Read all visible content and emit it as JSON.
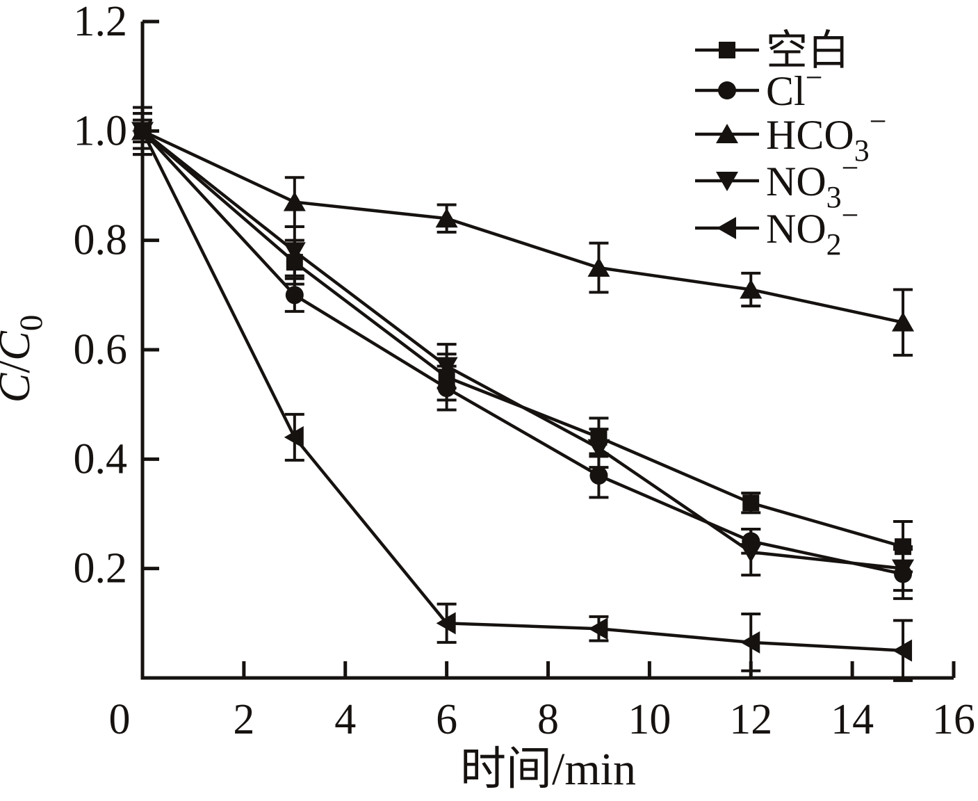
{
  "colors": {
    "ink": "#161210",
    "background": "#ffffff"
  },
  "axes": {
    "x": {
      "label": "时间/min",
      "origin_label": "0",
      "ticks": [
        2,
        4,
        6,
        8,
        10,
        12,
        14,
        16
      ],
      "range": [
        0,
        16
      ]
    },
    "y": {
      "label_parts": [
        {
          "t": "C",
          "p": "it"
        },
        {
          "t": "/",
          "p": "n"
        },
        {
          "t": "C",
          "p": "it"
        },
        {
          "t": "0",
          "p": "sub"
        }
      ],
      "ticks": [
        {
          "value": 1.2,
          "label": "1.2"
        },
        {
          "value": 1.0,
          "label": "1.0"
        },
        {
          "value": 0.8,
          "label": "0.8"
        },
        {
          "value": 0.6,
          "label": "0.6"
        },
        {
          "value": 0.4,
          "label": "0.4"
        },
        {
          "value": 0.2,
          "label": "0.2"
        }
      ],
      "range": [
        0,
        1.2
      ]
    }
  },
  "legend": {
    "position": "top-right",
    "entries": [
      {
        "id": "kongbai",
        "marker": "square",
        "parts": [
          {
            "t": "空白",
            "p": "n"
          }
        ]
      },
      {
        "id": "cl",
        "marker": "circle",
        "parts": [
          {
            "t": "Cl",
            "p": "n"
          },
          {
            "t": "−",
            "p": "sup"
          }
        ]
      },
      {
        "id": "hco3",
        "marker": "triangle-up",
        "parts": [
          {
            "t": "HCO",
            "p": "n"
          },
          {
            "t": "3",
            "p": "sub"
          },
          {
            "t": "−",
            "p": "sup"
          }
        ]
      },
      {
        "id": "no3",
        "marker": "triangle-down",
        "parts": [
          {
            "t": "NO",
            "p": "n"
          },
          {
            "t": "3",
            "p": "sub"
          },
          {
            "t": "−",
            "p": "sup"
          }
        ]
      },
      {
        "id": "no2",
        "marker": "triangle-left",
        "parts": [
          {
            "t": "NO",
            "p": "n"
          },
          {
            "t": "2",
            "p": "sub"
          },
          {
            "t": "−",
            "p": "sup"
          }
        ]
      }
    ]
  },
  "chart_data": {
    "type": "line",
    "title": "",
    "xlabel": "时间/min",
    "ylabel": "C/C0",
    "x": [
      0,
      3,
      6,
      9,
      12,
      15
    ],
    "xlim": [
      0,
      16
    ],
    "ylim": [
      0,
      1.2
    ],
    "grid": false,
    "legend_position": "top-right",
    "error_bars": true,
    "series": [
      {
        "id": "kongbai",
        "name": "空白",
        "marker": "square",
        "values": [
          1.0,
          0.76,
          0.55,
          0.44,
          0.32,
          0.24
        ],
        "errors": [
          0.043,
          0.04,
          0.042,
          0.035,
          0.018,
          0.046
        ]
      },
      {
        "id": "cl",
        "name": "Cl−",
        "marker": "circle",
        "values": [
          1.0,
          0.7,
          0.53,
          0.37,
          0.25,
          0.19
        ],
        "errors": [
          0.032,
          0.03,
          0.04,
          0.04,
          0.022,
          0.045
        ]
      },
      {
        "id": "hco3",
        "name": "HCO3−",
        "marker": "triangle-up",
        "values": [
          1.0,
          0.87,
          0.84,
          0.75,
          0.71,
          0.65
        ],
        "errors": [
          0.043,
          0.045,
          0.025,
          0.045,
          0.03,
          0.06
        ]
      },
      {
        "id": "no3",
        "name": "NO3−",
        "marker": "triangle-down",
        "values": [
          1.0,
          0.78,
          0.57,
          0.42,
          0.23,
          0.2
        ],
        "errors": [
          0.032,
          0.045,
          0.04,
          0.035,
          0.042,
          0.04
        ]
      },
      {
        "id": "no2",
        "name": "NO2−",
        "marker": "triangle-left",
        "values": [
          1.0,
          0.44,
          0.1,
          0.09,
          0.065,
          0.05
        ],
        "errors": [
          0.02,
          0.042,
          0.035,
          0.022,
          0.052,
          0.055
        ]
      }
    ]
  }
}
